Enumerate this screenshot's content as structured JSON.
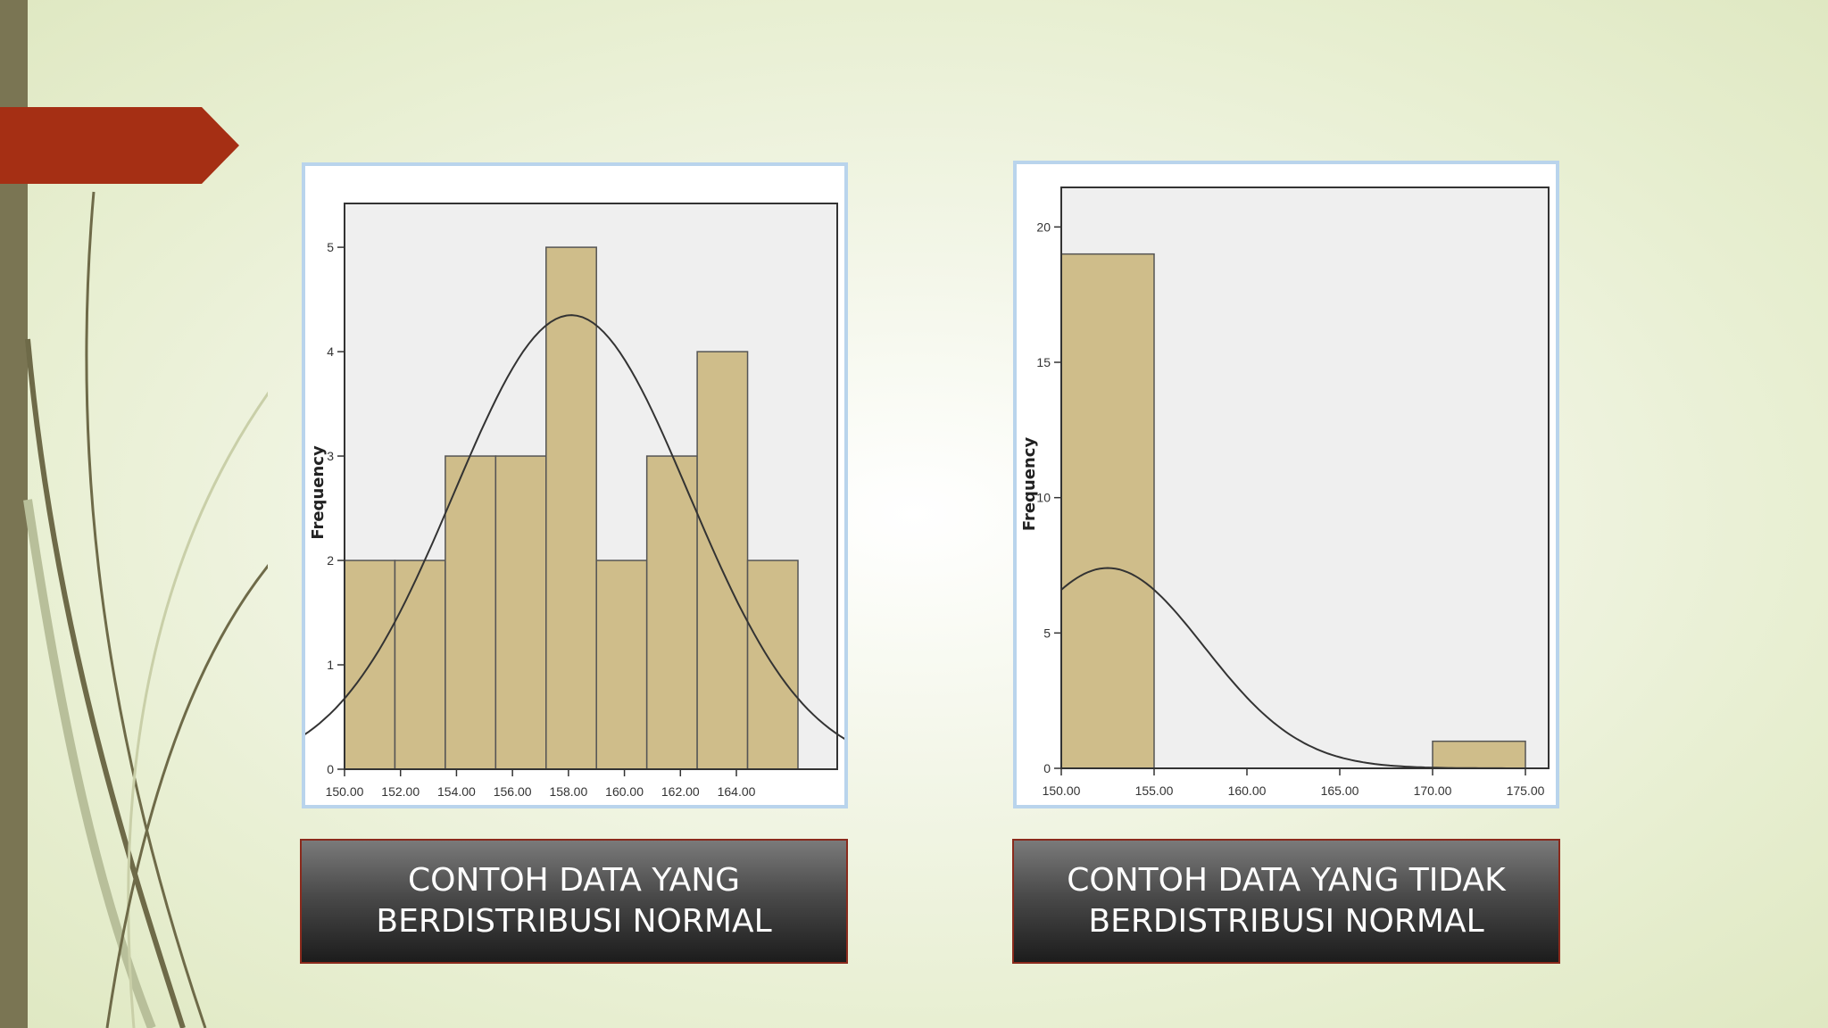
{
  "colors": {
    "bar_fill": "#cfbd8a",
    "bar_stroke": "#555555",
    "plot_bg": "#efefef",
    "accent": "#a52f14",
    "left_bar": "#7a7553"
  },
  "captions": {
    "left": {
      "line1": "CONTOH DATA YANG",
      "line2": "BERDISTRIBUSI NORMAL"
    },
    "right": {
      "line1": "CONTOH DATA YANG TIDAK",
      "line2": "BERDISTRIBUSI NORMAL"
    }
  },
  "chart_data": [
    {
      "type": "bar",
      "ylabel": "Frequency",
      "xlim": [
        150,
        166
      ],
      "ylim": [
        0,
        5.3
      ],
      "x_ticks": [
        "150.00",
        "152.00",
        "154.00",
        "156.00",
        "158.00",
        "160.00",
        "162.00",
        "164.00"
      ],
      "x_tick_values": [
        150,
        152,
        154,
        156,
        158,
        160,
        162,
        164
      ],
      "y_ticks": [
        0,
        1,
        2,
        3,
        4,
        5
      ],
      "bins": [
        {
          "start": 150,
          "end": 152,
          "count": 2
        },
        {
          "start": 152,
          "end": 154,
          "count": 2
        },
        {
          "start": 154,
          "end": 156,
          "count": 3
        },
        {
          "start": 156,
          "end": 158,
          "count": 3
        },
        {
          "start": 158,
          "end": 160,
          "count": 5
        },
        {
          "start": 160,
          "end": 162,
          "count": 2
        },
        {
          "start": 162,
          "end": 164,
          "count": 3
        },
        {
          "start": 164,
          "end": 166,
          "count": 4
        },
        {
          "start": 166,
          "end": 168,
          "count": 2
        }
      ],
      "normal_curve": {
        "mean": 158.1,
        "peak": 4.35,
        "sd": 4.2
      }
    },
    {
      "type": "bar",
      "ylabel": "Frequency",
      "xlim": [
        150,
        175
      ],
      "ylim": [
        0,
        21
      ],
      "x_ticks": [
        "150.00",
        "155.00",
        "160.00",
        "165.00",
        "170.00",
        "175.00"
      ],
      "x_tick_values": [
        150,
        155,
        160,
        165,
        170,
        175
      ],
      "y_ticks": [
        0,
        5,
        10,
        15,
        20
      ],
      "bins": [
        {
          "start": 150,
          "end": 155,
          "count": 19
        },
        {
          "start": 170,
          "end": 175,
          "count": 1
        }
      ],
      "normal_curve": {
        "mean": 152.5,
        "peak": 7.4,
        "sd": 5.2
      }
    }
  ]
}
